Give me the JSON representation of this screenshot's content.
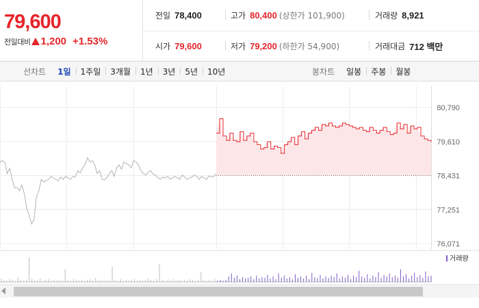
{
  "quote": {
    "price": "79,600",
    "change_label": "전일대비",
    "change_value": "1,200",
    "change_pct": "+1.53%",
    "colors": {
      "up": "#e5252a"
    }
  },
  "stats": {
    "prev_close": {
      "label": "전일",
      "value": "78,400"
    },
    "high": {
      "label": "고가",
      "value": "80,400",
      "sub": "(상한가 101,900)"
    },
    "volume": {
      "label": "거래량",
      "value": "8,921"
    },
    "open": {
      "label": "시가",
      "value": "79,600"
    },
    "low": {
      "label": "저가",
      "value": "79,200",
      "sub": "(하한가 54,900)"
    },
    "amount": {
      "label": "거래대금",
      "value": "712 백만"
    }
  },
  "toolbar": {
    "line_label": "선차트",
    "line_periods": [
      "1일",
      "1주일",
      "3개월",
      "1년",
      "3년",
      "5년",
      "10년"
    ],
    "active_period": "1일",
    "candle_label": "봉차트",
    "candle_periods": [
      "일봉",
      "주봉",
      "월봉"
    ]
  },
  "chart_data": {
    "type": "line",
    "title": "",
    "xlabel": "",
    "ylabel": "",
    "y_ticks": [
      "80,790",
      "79,610",
      "78,431",
      "77,251",
      "76,071"
    ],
    "ylim": [
      76071,
      80790
    ],
    "grid": true,
    "reference_line": 78431,
    "colors": {
      "prev_day": "#b3b3b3",
      "today": "#e5252a",
      "today_fill": "#fde6e8",
      "volume": "#7b5ac4",
      "volume_prev": "#bdbdbd"
    },
    "series": [
      {
        "values": [
          78900,
          78950,
          78880,
          78500,
          78680,
          78300,
          78000,
          78020,
          77900,
          78100,
          77800,
          77300,
          77050,
          76750,
          76900,
          77700,
          77900,
          78300,
          78200,
          78250,
          78300,
          78400,
          78350,
          78300,
          78250,
          78380,
          78300,
          78400,
          78350,
          78300,
          78400,
          78380,
          78600,
          78520,
          78700,
          78800,
          79050,
          78900,
          78950,
          78800,
          78500,
          78600,
          78300,
          78280,
          78350,
          78500,
          78600,
          78400,
          78700,
          78800,
          78650,
          78900,
          78850,
          78800,
          78700,
          78950,
          78900,
          78800,
          78600,
          78500,
          78450,
          78550,
          78600,
          78480,
          78450,
          78350,
          78300,
          78380,
          78350,
          78400,
          78300,
          78350,
          78400,
          78350,
          78300,
          78450,
          78380,
          78300,
          78350,
          78380,
          78450,
          78400,
          78300,
          78400,
          78350,
          78300,
          78420,
          78380,
          78400,
          78500
        ]
      },
      {
        "values": [
          79900,
          80400,
          79800,
          79650,
          79900,
          79650,
          79600,
          79950,
          79650,
          79800,
          79900,
          79600,
          79500,
          79350,
          79400,
          79600,
          79350,
          79450,
          79400,
          79200,
          79500,
          79600,
          79750,
          79500,
          79800,
          79950,
          79700,
          79900,
          80000,
          80100,
          80000,
          80200,
          80150,
          80250,
          80150,
          80100,
          80150,
          80250,
          80200,
          80150,
          80100,
          80050,
          80100,
          80000,
          79950,
          80100,
          80000,
          79900,
          80000,
          80100,
          79950,
          79850,
          79900,
          80250,
          80050,
          80200,
          79900,
          80150,
          80050,
          80100,
          79800,
          79700,
          79650,
          79600
        ]
      }
    ],
    "volume": {
      "legend": "거래량",
      "values": [
        5,
        3,
        2,
        4,
        3,
        2,
        6,
        3,
        2,
        3,
        35,
        4,
        3,
        2,
        5,
        2,
        3,
        4,
        2,
        3,
        2,
        3,
        2,
        18,
        3,
        2,
        4,
        3,
        2,
        3,
        2,
        3,
        4,
        2,
        6,
        2,
        3,
        2,
        3,
        2,
        22,
        3,
        2,
        4,
        2,
        3,
        2,
        3,
        4,
        2,
        3,
        2,
        3,
        5,
        3,
        2,
        4,
        25,
        3,
        2,
        3,
        2,
        4,
        2,
        3,
        2,
        3,
        2,
        4,
        3,
        2,
        3,
        14,
        3,
        2,
        3,
        2,
        4,
        2,
        3,
        2,
        3,
        8,
        12,
        6,
        9,
        4,
        7,
        5,
        6,
        8,
        4,
        9,
        5,
        7,
        6,
        10,
        5,
        8,
        4,
        12,
        6,
        9,
        5,
        7,
        4,
        11,
        6,
        8,
        5,
        9,
        4,
        13,
        7,
        6,
        10,
        5,
        8,
        6,
        9,
        7,
        12,
        5,
        8,
        6,
        10,
        4,
        9,
        7,
        16,
        8,
        6,
        11,
        5,
        9,
        7,
        14,
        6,
        10,
        8,
        12,
        7,
        9,
        6,
        18,
        8,
        11,
        5,
        9,
        13,
        7,
        10,
        6,
        15,
        8,
        9
      ]
    }
  },
  "scrollbar": {
    "label": "chart-scroll"
  }
}
